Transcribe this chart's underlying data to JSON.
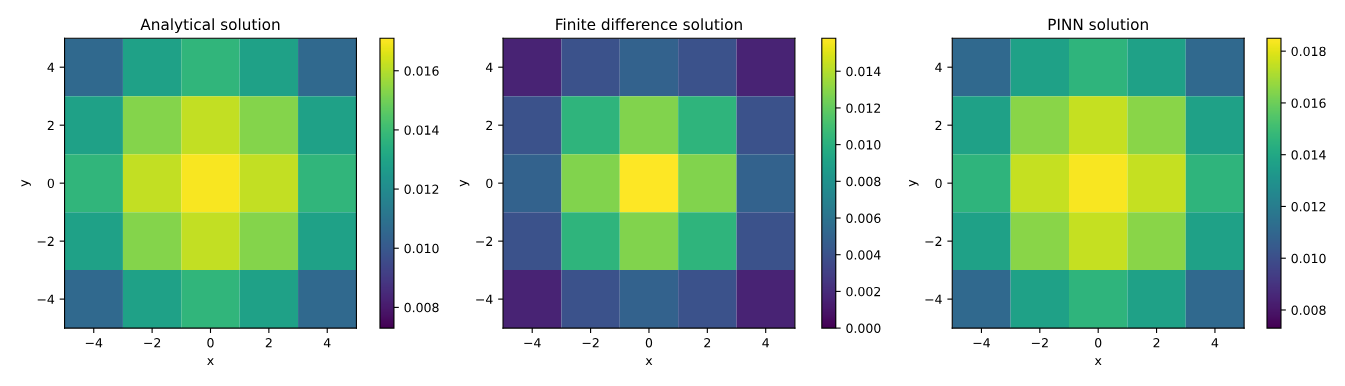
{
  "chart_data": [
    {
      "type": "heatmap",
      "title": "Analytical solution",
      "xlabel": "x",
      "ylabel": "y",
      "categories": [
        "−4",
        "−2",
        "0",
        "2",
        "4"
      ],
      "y_categories": [
        "4",
        "2",
        "0",
        "−2",
        "−4"
      ],
      "clim": [
        0.0073,
        0.0171
      ],
      "cticks": [
        {
          "value": 0.008,
          "label": "0.008"
        },
        {
          "value": 0.01,
          "label": "0.010"
        },
        {
          "value": 0.012,
          "label": "0.012"
        },
        {
          "value": 0.014,
          "label": "0.014"
        },
        {
          "value": 0.016,
          "label": "0.016"
        }
      ],
      "cells": [
        [
          0.0106,
          0.0129,
          0.0137,
          0.0129,
          0.0106
        ],
        [
          0.0129,
          0.0153,
          0.0162,
          0.0153,
          0.0129
        ],
        [
          0.0137,
          0.0162,
          0.017,
          0.0162,
          0.0137
        ],
        [
          0.0129,
          0.0153,
          0.0162,
          0.0153,
          0.0129
        ],
        [
          0.0106,
          0.0129,
          0.0137,
          0.0129,
          0.0106
        ]
      ]
    },
    {
      "type": "heatmap",
      "title": "Finite difference solution",
      "xlabel": "x",
      "ylabel": "y",
      "categories": [
        "−4",
        "−2",
        "0",
        "2",
        "4"
      ],
      "y_categories": [
        "4",
        "2",
        "0",
        "−2",
        "−4"
      ],
      "clim": [
        0,
        0.0158
      ],
      "cticks": [
        {
          "value": 0,
          "label": "0.000"
        },
        {
          "value": 0.002,
          "label": "0.002"
        },
        {
          "value": 0.004,
          "label": "0.004"
        },
        {
          "value": 0.006,
          "label": "0.006"
        },
        {
          "value": 0.008,
          "label": "0.008"
        },
        {
          "value": 0.01,
          "label": "0.010"
        },
        {
          "value": 0.012,
          "label": "0.012"
        },
        {
          "value": 0.014,
          "label": "0.014"
        }
      ],
      "cells": [
        [
          0.0015,
          0.004,
          0.0049,
          0.004,
          0.0015
        ],
        [
          0.004,
          0.0103,
          0.0128,
          0.0103,
          0.004
        ],
        [
          0.0049,
          0.0128,
          0.0158,
          0.0128,
          0.0049
        ],
        [
          0.004,
          0.0103,
          0.0128,
          0.0103,
          0.004
        ],
        [
          0.0015,
          0.004,
          0.0049,
          0.004,
          0.0015
        ]
      ]
    },
    {
      "type": "heatmap",
      "title": "PINN solution",
      "xlabel": "x",
      "ylabel": "y",
      "categories": [
        "−4",
        "−2",
        "0",
        "2",
        "4"
      ],
      "y_categories": [
        "4",
        "2",
        "0",
        "−2",
        "−4"
      ],
      "clim": [
        0.0073,
        0.0185
      ],
      "cticks": [
        {
          "value": 0.008,
          "label": "0.008"
        },
        {
          "value": 0.01,
          "label": "0.010"
        },
        {
          "value": 0.012,
          "label": "0.012"
        },
        {
          "value": 0.014,
          "label": "0.014"
        },
        {
          "value": 0.016,
          "label": "0.016"
        },
        {
          "value": 0.018,
          "label": "0.018"
        }
      ],
      "cells": [
        [
          0.0111,
          0.0137,
          0.0146,
          0.0137,
          0.0111
        ],
        [
          0.0137,
          0.0165,
          0.0175,
          0.0165,
          0.0137
        ],
        [
          0.0146,
          0.0175,
          0.0184,
          0.0175,
          0.0146
        ],
        [
          0.0137,
          0.0165,
          0.0175,
          0.0165,
          0.0137
        ],
        [
          0.0111,
          0.0137,
          0.0146,
          0.0137,
          0.0111
        ]
      ]
    }
  ]
}
